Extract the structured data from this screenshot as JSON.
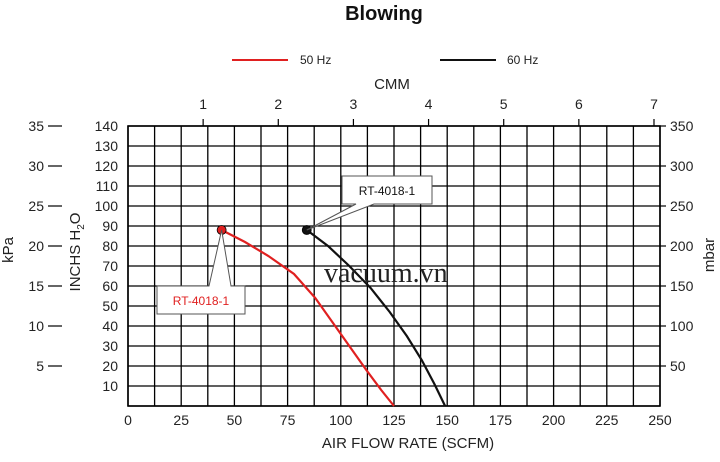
{
  "chart_data": {
    "type": "line",
    "title": "Blowing",
    "xlabel": "AIR FLOW RATE (SCFM)",
    "xlim": [
      0,
      250
    ],
    "xticks": [
      "0",
      "25",
      "50",
      "75",
      "100",
      "125",
      "150",
      "175",
      "200",
      "225",
      "250"
    ],
    "x2label": "CMM",
    "x2lim": [
      0,
      7.08
    ],
    "x2ticks": [
      "1",
      "2",
      "3",
      "4",
      "5",
      "6",
      "7"
    ],
    "ylabel": "INCHS H2O",
    "ylabel_main": "INCHS  H",
    "ylabel_sub": "2",
    "ylabel_end": "O",
    "ylim": [
      0,
      140
    ],
    "yticks": [
      "140",
      "130",
      "120",
      "110",
      "100",
      "90",
      "80",
      "70",
      "60",
      "50",
      "40",
      "30",
      "20",
      "10"
    ],
    "y2label": "kPa",
    "y2lim": [
      0,
      35
    ],
    "y2ticks": [
      "35",
      "30",
      "25",
      "20",
      "15",
      "10",
      "5"
    ],
    "y3label": "mbar",
    "y3lim": [
      0,
      350
    ],
    "y3ticks": [
      "350",
      "300",
      "250",
      "200",
      "150",
      "100",
      "50"
    ],
    "grid": true,
    "legend_position": "top",
    "series": [
      {
        "name": "50 Hz",
        "color": "#e02020",
        "x": [
          44,
          55,
          66,
          78,
          88,
          96,
          104,
          112,
          119,
          125
        ],
        "y": [
          88,
          82,
          75,
          66,
          54,
          42,
          30,
          18,
          8,
          0
        ],
        "marker": {
          "x": 44,
          "y": 88,
          "label": "RT-4018-1"
        }
      },
      {
        "name": "60 Hz",
        "color": "#111111",
        "x": [
          84,
          94,
          104,
          114,
          123,
          131,
          138,
          144,
          149
        ],
        "y": [
          88,
          80,
          70,
          59,
          47,
          35,
          23,
          11,
          0
        ],
        "marker": {
          "x": 84,
          "y": 88,
          "label": "RT-4018-1"
        }
      }
    ],
    "watermark": "vacuum.vn"
  }
}
